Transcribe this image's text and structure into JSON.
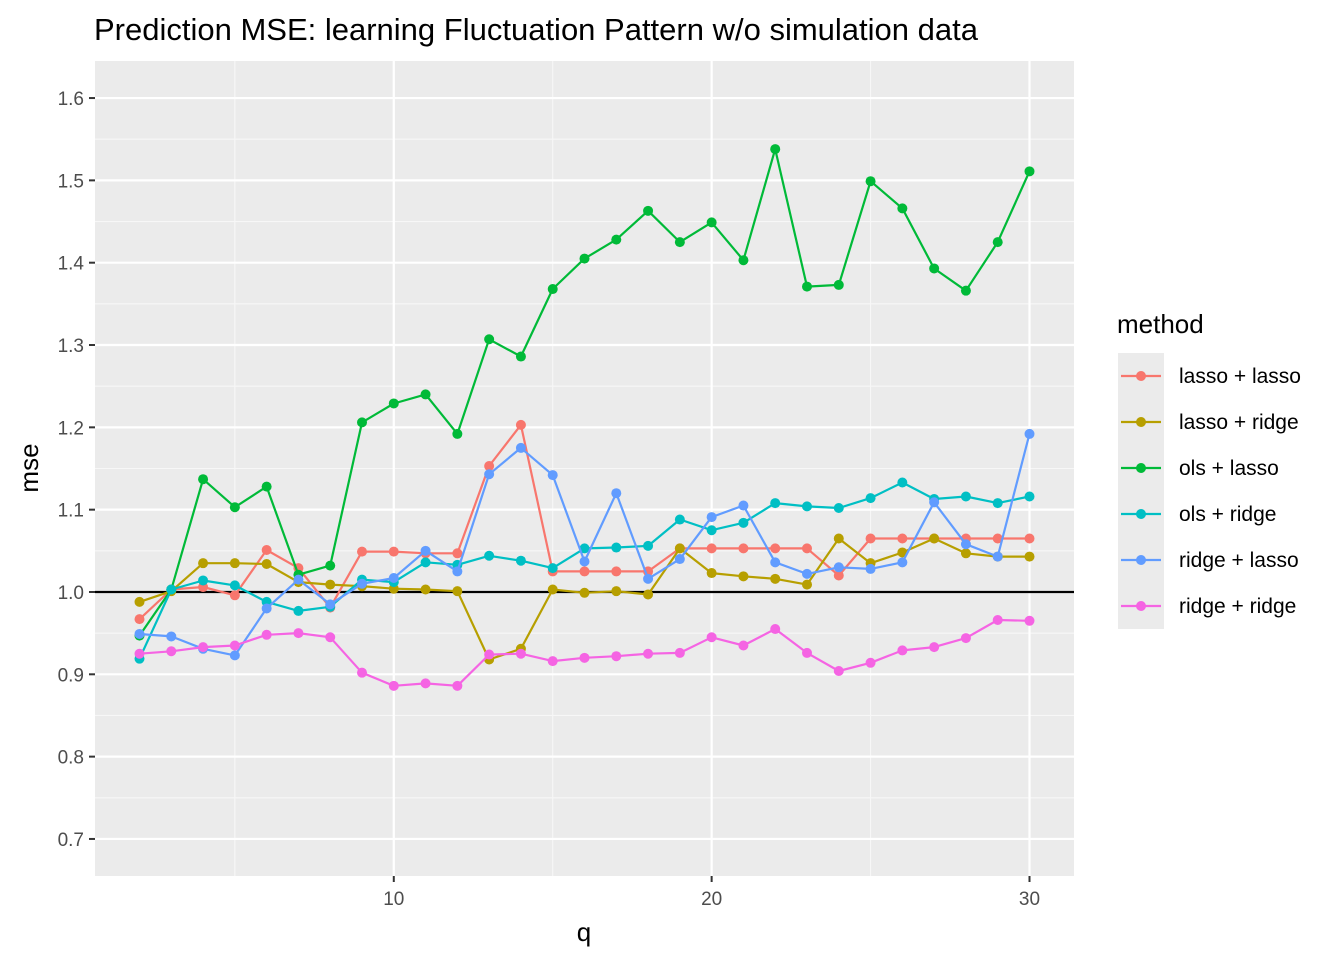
{
  "chart_data": {
    "type": "line",
    "title": "Prediction MSE: learning Fluctuation Pattern w/o simulation data",
    "xlabel": "q",
    "ylabel": "mse",
    "xlim": [
      0.6,
      31.4
    ],
    "ylim": [
      0.655,
      1.645
    ],
    "x_ticks": [
      10,
      20,
      30
    ],
    "y_ticks": [
      0.7,
      0.8,
      0.9,
      1.0,
      1.1,
      1.2,
      1.3,
      1.4,
      1.5,
      1.6
    ],
    "x_tick_labels": [
      "10",
      "20",
      "30"
    ],
    "y_tick_labels": [
      "0.7",
      "0.8",
      "0.9",
      "1.0",
      "1.1",
      "1.2",
      "1.3",
      "1.4",
      "1.5",
      "1.6"
    ],
    "reference_line": 1.0,
    "grid": true,
    "legend": {
      "title": "method",
      "placement": "right"
    },
    "x": [
      2,
      3,
      4,
      5,
      6,
      7,
      8,
      9,
      10,
      11,
      12,
      13,
      14,
      15,
      16,
      17,
      18,
      19,
      20,
      21,
      22,
      23,
      24,
      25,
      26,
      27,
      28,
      29,
      30
    ],
    "series": [
      {
        "name": "lasso + lasso",
        "color": "#F8766D",
        "values": [
          0.967,
          1.003,
          1.006,
          0.996,
          1.051,
          1.029,
          0.981,
          1.049,
          1.049,
          1.047,
          1.047,
          1.153,
          1.203,
          1.025,
          1.025,
          1.025,
          1.025,
          1.053,
          1.053,
          1.053,
          1.053,
          1.053,
          1.02,
          1.065,
          1.065,
          1.065,
          1.065,
          1.065,
          1.065
        ]
      },
      {
        "name": "lasso + ridge",
        "color": "#B79F00",
        "values": [
          0.988,
          1.001,
          1.035,
          1.035,
          1.034,
          1.012,
          1.009,
          1.007,
          1.004,
          1.003,
          1.001,
          0.918,
          0.931,
          1.003,
          0.999,
          1.001,
          0.997,
          1.053,
          1.023,
          1.019,
          1.016,
          1.009,
          1.065,
          1.035,
          1.048,
          1.065,
          1.047,
          1.043,
          1.043
        ]
      },
      {
        "name": "ols + lasso",
        "color": "#00BA38",
        "values": [
          0.947,
          1.003,
          1.137,
          1.103,
          1.128,
          1.021,
          1.032,
          1.206,
          1.229,
          1.24,
          1.192,
          1.307,
          1.286,
          1.368,
          1.405,
          1.428,
          1.463,
          1.425,
          1.449,
          1.403,
          1.538,
          1.371,
          1.373,
          1.499,
          1.466,
          1.393,
          1.366,
          1.425,
          1.511
        ]
      },
      {
        "name": "ols + ridge",
        "color": "#00BFC4",
        "values": [
          0.919,
          1.003,
          1.014,
          1.008,
          0.988,
          0.977,
          0.982,
          1.015,
          1.012,
          1.036,
          1.033,
          1.044,
          1.038,
          1.029,
          1.053,
          1.054,
          1.056,
          1.088,
          1.075,
          1.084,
          1.108,
          1.104,
          1.102,
          1.114,
          1.133,
          1.113,
          1.116,
          1.108,
          1.116
        ]
      },
      {
        "name": "ridge + lasso",
        "color": "#619CFF",
        "values": [
          0.949,
          0.946,
          0.931,
          0.923,
          0.98,
          1.015,
          0.985,
          1.01,
          1.017,
          1.05,
          1.025,
          1.143,
          1.175,
          1.142,
          1.037,
          1.12,
          1.016,
          1.04,
          1.091,
          1.105,
          1.036,
          1.022,
          1.03,
          1.028,
          1.036,
          1.109,
          1.058,
          1.043,
          1.192
        ]
      },
      {
        "name": "ridge + ridge",
        "color": "#F564E3",
        "values": [
          0.925,
          0.928,
          0.933,
          0.935,
          0.948,
          0.95,
          0.945,
          0.902,
          0.886,
          0.889,
          0.886,
          0.924,
          0.925,
          0.916,
          0.92,
          0.922,
          0.925,
          0.926,
          0.945,
          0.935,
          0.955,
          0.926,
          0.904,
          0.914,
          0.929,
          0.933,
          0.944,
          0.966,
          0.965
        ]
      }
    ]
  }
}
